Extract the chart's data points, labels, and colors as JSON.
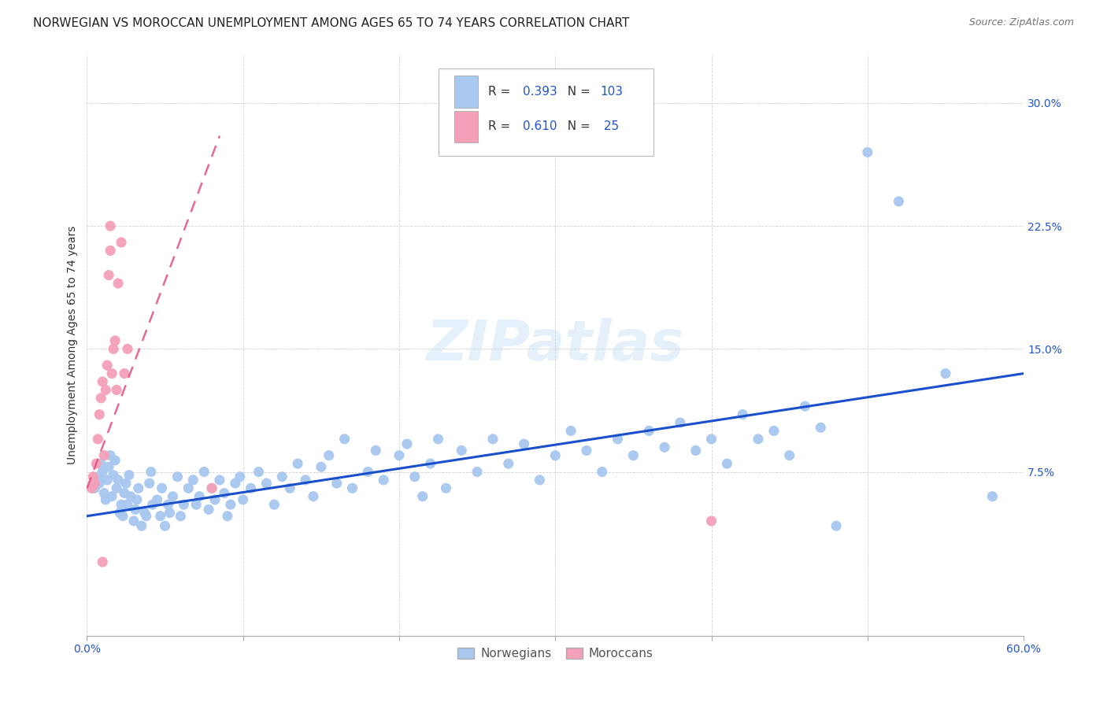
{
  "title": "NORWEGIAN VS MOROCCAN UNEMPLOYMENT AMONG AGES 65 TO 74 YEARS CORRELATION CHART",
  "source": "Source: ZipAtlas.com",
  "ylabel": "Unemployment Among Ages 65 to 74 years",
  "xlim": [
    0.0,
    0.6
  ],
  "ylim": [
    -0.025,
    0.33
  ],
  "ytick_vals": [
    0.075,
    0.15,
    0.225,
    0.3
  ],
  "ytick_labels": [
    "7.5%",
    "15.0%",
    "22.5%",
    "30.0%"
  ],
  "xtick_vals": [
    0.0,
    0.1,
    0.2,
    0.3,
    0.4,
    0.5,
    0.6
  ],
  "norwegian_color": "#a8c8f0",
  "moroccan_color": "#f4a0b8",
  "norwegian_line_color": "#1a4fcc",
  "moroccan_line_color": "#e05080",
  "background_color": "#ffffff",
  "watermark": "ZIPatlas",
  "legend_r_norwegian": "0.393",
  "legend_n_norwegian": "103",
  "legend_r_moroccan": "0.610",
  "legend_n_moroccan": "25",
  "norwegians_label": "Norwegians",
  "moroccans_label": "Moroccans",
  "title_fontsize": 11,
  "axis_label_fontsize": 10,
  "tick_fontsize": 10,
  "legend_fontsize": 11,
  "norw_line_start_x": 0.0,
  "norw_line_start_y": 0.048,
  "norw_line_end_x": 0.6,
  "norw_line_end_y": 0.135,
  "morc_line_start_x": 0.0,
  "morc_line_start_y": 0.065,
  "morc_line_end_x": 0.085,
  "morc_line_end_y": 0.28
}
